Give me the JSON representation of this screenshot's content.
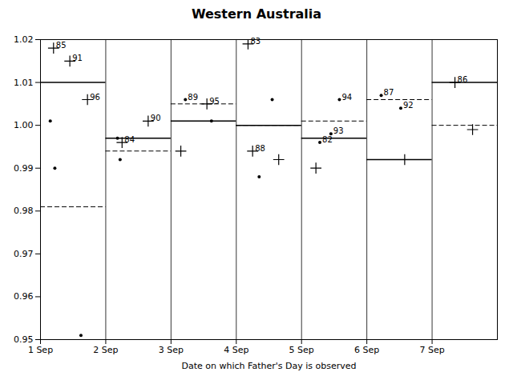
{
  "chart_data": {
    "type": "scatter",
    "title": "Western Australia",
    "xlabel": "Date on which Father's Day is observed",
    "xlim": [
      0,
      7
    ],
    "xticks": [
      {
        "value": 0,
        "label": "1 Sep"
      },
      {
        "value": 1,
        "label": "2 Sep"
      },
      {
        "value": 2,
        "label": "3 Sep"
      },
      {
        "value": 3,
        "label": "4 Sep"
      },
      {
        "value": 4,
        "label": "5 Sep"
      },
      {
        "value": 5,
        "label": "6 Sep"
      },
      {
        "value": 6,
        "label": "7 Sep"
      }
    ],
    "ylim": [
      0.95,
      1.02
    ],
    "yticks": [
      0.95,
      0.96,
      0.97,
      0.98,
      0.99,
      {
        "value": 1.0,
        "label": "1.00"
      },
      1.01,
      1.02
    ],
    "grid": false,
    "color": "#000000",
    "series": [
      {
        "type": "hline",
        "line_style": "solid",
        "x": [
          0,
          1,
          2,
          3,
          4,
          5,
          6
        ],
        "x_end": [
          1,
          2,
          3,
          4,
          5,
          6,
          7
        ],
        "values": [
          1.01,
          0.997,
          1.001,
          1.0,
          0.997,
          0.992,
          1.01
        ]
      },
      {
        "type": "hline",
        "line_style": "dashed",
        "x": [
          0,
          1,
          2,
          3,
          4,
          5,
          6
        ],
        "x_end": [
          1,
          2,
          3,
          4,
          5,
          6,
          7
        ],
        "values": [
          0.981,
          0.994,
          1.005,
          1.0,
          1.001,
          1.006,
          1.0
        ]
      },
      {
        "type": "scatter",
        "marker": "plus",
        "x": [
          0.2,
          0.45,
          0.72,
          1.65,
          1.25,
          2.55,
          2.15,
          3.18,
          3.25,
          3.65,
          4.22,
          5.58,
          6.35,
          6.62
        ],
        "values": [
          1.018,
          1.015,
          1.006,
          1.001,
          0.996,
          1.005,
          0.994,
          1.019,
          0.994,
          0.992,
          0.99,
          0.992,
          1.01,
          0.999
        ],
        "labels": [
          "85",
          "91",
          "96",
          "90",
          "84",
          "95",
          null,
          "83",
          "88",
          null,
          null,
          null,
          "86",
          null
        ]
      },
      {
        "type": "scatter",
        "marker": "dot",
        "x": [
          0.15,
          0.22,
          0.62,
          1.18,
          1.22,
          2.22,
          2.62,
          3.55,
          3.35,
          4.58,
          4.45,
          4.28,
          5.22,
          5.52
        ],
        "values": [
          1.001,
          0.99,
          0.951,
          0.997,
          0.992,
          1.006,
          1.001,
          1.006,
          0.988,
          1.006,
          0.998,
          0.996,
          1.007,
          1.004
        ],
        "labels": [
          null,
          null,
          null,
          null,
          null,
          "89",
          null,
          null,
          null,
          "94",
          "93",
          "82",
          "87",
          "92"
        ]
      }
    ]
  }
}
